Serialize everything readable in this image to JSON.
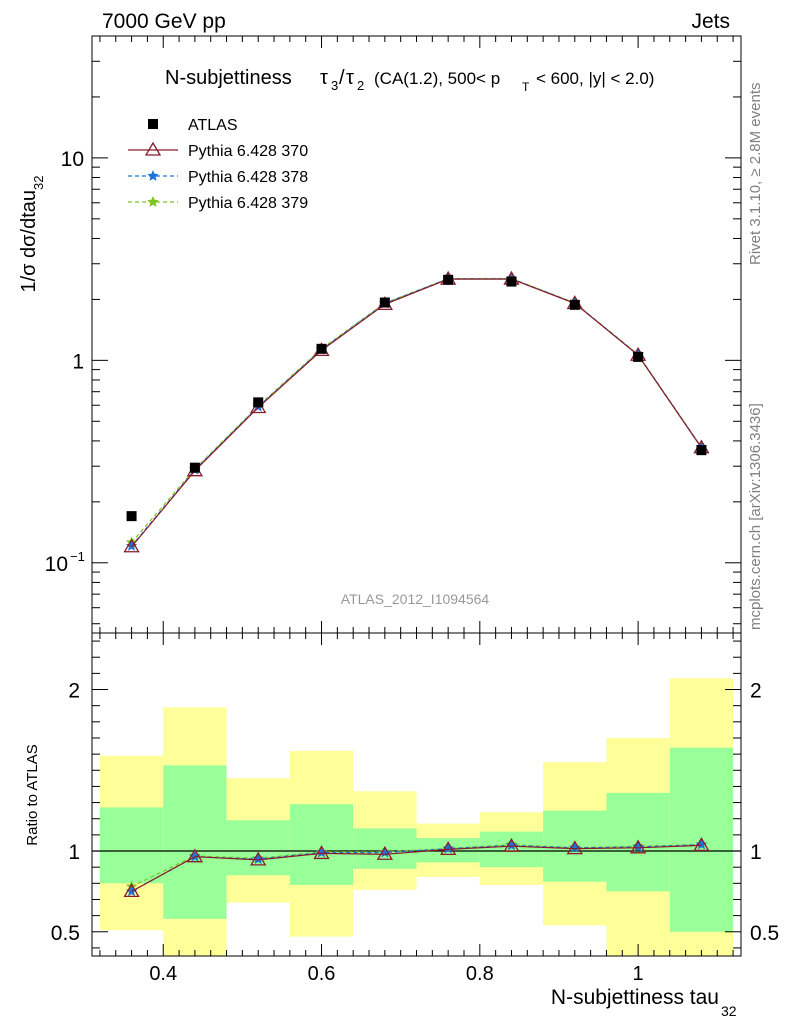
{
  "header": {
    "energy": "7000 GeV pp",
    "category": "Jets",
    "title_prefix": "N-subjettiness",
    "title_suffix": "(CA(1.2), 500< p",
    "title_suffix_sub": "T",
    "title_suffix_end": "< 600, |y| < 2.0)",
    "rivet_label": "Rivet 3.1.10, ≥ 2.8M events",
    "mcplots_label": "mcplots.cern.ch [arXiv:1306.3436]",
    "analysis_label": "ATLAS_2012_I1094564"
  },
  "axes": {
    "ylabel_main": "1/σ dσ/dtau",
    "ylabel_main_sub": "32",
    "ylabel_ratio": "Ratio to ATLAS",
    "xlabel": "N-subjettiness tau",
    "xlabel_sub": "32"
  },
  "chart_data": [
    {
      "type": "line",
      "panel": "main",
      "yscale": "log",
      "xlim": [
        0.31,
        1.13
      ],
      "ylim": [
        0.045,
        40
      ],
      "x": [
        0.36,
        0.44,
        0.52,
        0.6,
        0.68,
        0.76,
        0.84,
        0.92,
        1.0,
        1.08
      ],
      "bin_edges": [
        0.32,
        0.4,
        0.48,
        0.56,
        0.64,
        0.72,
        0.8,
        0.88,
        0.96,
        1.04,
        1.12
      ],
      "y_ticks": [
        {
          "value": 0.1,
          "base": "10",
          "exp": "−1"
        },
        {
          "value": 1,
          "base": "1",
          "exp": ""
        },
        {
          "value": 10,
          "base": "10",
          "exp": ""
        }
      ],
      "series": [
        {
          "name": "ATLAS",
          "color": "#000000",
          "marker": "square",
          "values": [
            0.17,
            0.295,
            0.62,
            1.14,
            1.93,
            2.5,
            2.45,
            1.88,
            1.04,
            0.36
          ]
        },
        {
          "name": "Pythia 6.428 370",
          "color": "#8b1a2b",
          "marker": "triangle",
          "values": [
            0.12,
            0.285,
            0.585,
            1.12,
            1.89,
            2.52,
            2.52,
            1.91,
            1.06,
            0.37
          ]
        },
        {
          "name": "Pythia 6.428 378",
          "color": "#1e73d8",
          "marker": "star",
          "dash": "4,3",
          "values": [
            0.121,
            0.288,
            0.59,
            1.13,
            1.91,
            2.53,
            2.53,
            1.92,
            1.065,
            0.372
          ]
        },
        {
          "name": "Pythia 6.428 379",
          "color": "#7cc520",
          "marker": "star",
          "dash": "4,3",
          "values": [
            0.126,
            0.291,
            0.595,
            1.14,
            1.92,
            2.53,
            2.54,
            1.92,
            1.07,
            0.373
          ]
        }
      ]
    },
    {
      "type": "line",
      "panel": "ratio",
      "xlim": [
        0.31,
        1.13
      ],
      "ylim": [
        0.35,
        2.35
      ],
      "x_ticks": [
        0.4,
        0.6,
        0.8,
        1.0
      ],
      "x_tick_labels": [
        "0.4",
        "0.6",
        "0.8",
        "1"
      ],
      "y_ticks": [
        0.5,
        1,
        2
      ],
      "y_tick_labels": [
        "0.5",
        "1",
        "2"
      ],
      "bands": [
        {
          "x0": 0.32,
          "x1": 0.4,
          "y_lo": 0.51,
          "y_hi": 1.59,
          "g_lo": 0.8,
          "g_hi": 1.27
        },
        {
          "x0": 0.4,
          "x1": 0.48,
          "y_lo": 0.35,
          "y_hi": 1.89,
          "g_lo": 0.58,
          "g_hi": 1.53
        },
        {
          "x0": 0.48,
          "x1": 0.56,
          "y_lo": 0.68,
          "y_hi": 1.45,
          "g_lo": 0.85,
          "g_hi": 1.19
        },
        {
          "x0": 0.56,
          "x1": 0.64,
          "y_lo": 0.47,
          "y_hi": 1.62,
          "g_lo": 0.79,
          "g_hi": 1.29
        },
        {
          "x0": 0.64,
          "x1": 0.72,
          "y_lo": 0.76,
          "y_hi": 1.37,
          "g_lo": 0.89,
          "g_hi": 1.14
        },
        {
          "x0": 0.72,
          "x1": 0.8,
          "y_lo": 0.84,
          "y_hi": 1.17,
          "g_lo": 0.93,
          "g_hi": 1.08
        },
        {
          "x0": 0.8,
          "x1": 0.88,
          "y_lo": 0.79,
          "y_hi": 1.24,
          "g_lo": 0.9,
          "g_hi": 1.12
        },
        {
          "x0": 0.88,
          "x1": 0.96,
          "y_lo": 0.54,
          "y_hi": 1.55,
          "g_lo": 0.81,
          "g_hi": 1.25
        },
        {
          "x0": 0.96,
          "x1": 1.04,
          "y_lo": 0.35,
          "y_hi": 1.7,
          "g_lo": 0.75,
          "g_hi": 1.36
        },
        {
          "x0": 1.04,
          "x1": 1.12,
          "y_lo": 0.35,
          "y_hi": 2.07,
          "g_lo": 0.5,
          "g_hi": 1.64
        }
      ],
      "series": [
        {
          "name": "Pythia 6.428 370",
          "color": "#8b1a2b",
          "marker": "triangle",
          "values": [
            0.75,
            0.965,
            0.945,
            0.985,
            0.98,
            1.01,
            1.03,
            1.015,
            1.02,
            1.035
          ]
        },
        {
          "name": "Pythia 6.428 378",
          "color": "#1e73d8",
          "marker": "star",
          "dash": "4,3",
          "values": [
            0.75,
            0.965,
            0.95,
            0.99,
            0.99,
            1.015,
            1.035,
            1.02,
            1.025,
            1.04
          ]
        },
        {
          "name": "Pythia 6.428 379",
          "color": "#7cc520",
          "marker": "star",
          "dash": "4,3",
          "values": [
            0.78,
            0.97,
            0.955,
            0.995,
            0.995,
            1.015,
            1.04,
            1.02,
            1.03,
            1.04
          ]
        }
      ]
    }
  ],
  "colors": {
    "band_outer": "#ffff99",
    "band_inner": "#99ff99",
    "frame": "#000000",
    "muted_text": "#808080"
  }
}
